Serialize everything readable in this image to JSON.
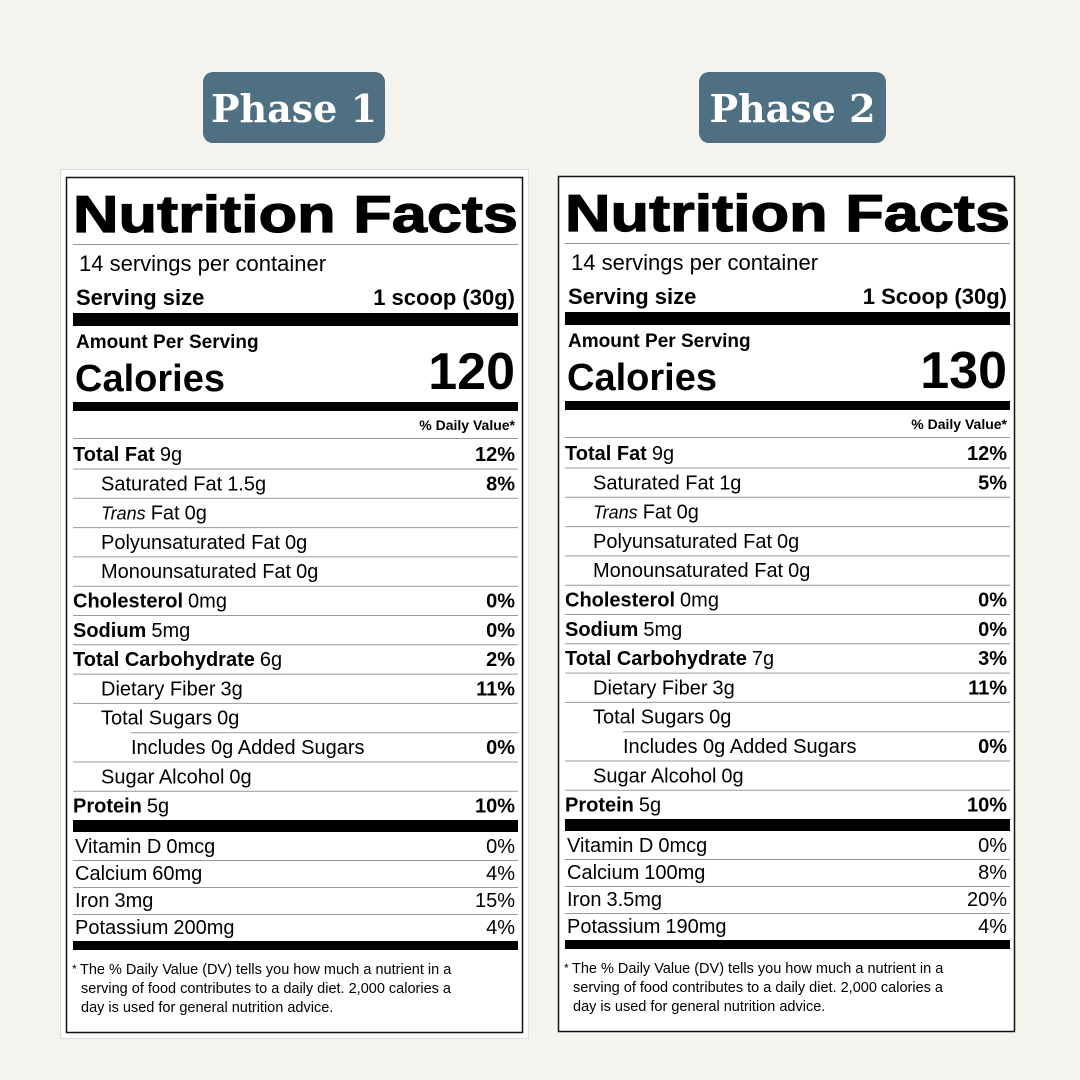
{
  "panels": [
    {
      "badge": "Phase 1",
      "label": {
        "title": "Nutrition Facts",
        "servings": "14 servings per container",
        "serving_size_label": "Serving size",
        "serving_size": "1 scoop (30g)",
        "amount_per_serving": "Amount Per Serving",
        "calories_label": "Calories",
        "calories": "120",
        "dv_header": "% Daily Value*",
        "nutrients": [
          {
            "name": "Total Fat",
            "amount": "9g",
            "dv": "12%",
            "bold": true,
            "indent": 0
          },
          {
            "name": "Saturated Fat",
            "amount": "1.5g",
            "dv": "8%",
            "bold": false,
            "indent": 1
          },
          {
            "italic_prefix": "Trans",
            "name": "Fat",
            "amount": "0g",
            "bold": false,
            "indent": 1
          },
          {
            "name": "Polyunsaturated Fat",
            "amount": "0g",
            "bold": false,
            "indent": 1
          },
          {
            "name": "Monounsaturated Fat",
            "amount": "0g",
            "bold": false,
            "indent": 1
          },
          {
            "name": "Cholesterol",
            "amount": "0mg",
            "dv": "0%",
            "bold": true,
            "indent": 0
          },
          {
            "name": "Sodium",
            "amount": "5mg",
            "dv": "0%",
            "bold": true,
            "indent": 0
          },
          {
            "name": "Total Carbohydrate",
            "amount": "6g",
            "dv": "2%",
            "bold": true,
            "indent": 0
          },
          {
            "name": "Dietary Fiber",
            "amount": "3g",
            "dv": "11%",
            "bold": false,
            "indent": 1
          },
          {
            "name": "Total Sugars",
            "amount": "0g",
            "bold": false,
            "indent": 1
          },
          {
            "name": "Includes 0g Added Sugars",
            "dv": "0%",
            "bold": false,
            "indent": 2
          },
          {
            "name": "Sugar Alcohol",
            "amount": "0g",
            "bold": false,
            "indent": 1
          },
          {
            "name": "Protein",
            "amount": "5g",
            "dv": "10%",
            "bold": true,
            "indent": 0
          }
        ],
        "vitamins": [
          {
            "name": "Vitamin D",
            "amount": "0mcg",
            "dv": "0%"
          },
          {
            "name": "Calcium",
            "amount": "60mg",
            "dv": "4%"
          },
          {
            "name": "Iron",
            "amount": "3mg",
            "dv": "15%"
          },
          {
            "name": "Potassium",
            "amount": "200mg",
            "dv": "4%"
          }
        ],
        "footnote_mark": "*",
        "footnote_lines": [
          "The % Daily Value (DV) tells you how much a nutrient in a",
          "serving of food contributes to a daily diet. 2,000 calories a",
          "day is used for general nutrition advice."
        ]
      }
    },
    {
      "badge": "Phase 2",
      "label": {
        "title": "Nutrition Facts",
        "servings": "14 servings per container",
        "serving_size_label": "Serving size",
        "serving_size": "1 Scoop (30g)",
        "amount_per_serving": "Amount Per Serving",
        "calories_label": "Calories",
        "calories": "130",
        "dv_header": "% Daily Value*",
        "nutrients": [
          {
            "name": "Total Fat",
            "amount": "9g",
            "dv": "12%",
            "bold": true,
            "indent": 0
          },
          {
            "name": "Saturated Fat",
            "amount": "1g",
            "dv": "5%",
            "bold": false,
            "indent": 1
          },
          {
            "italic_prefix": "Trans",
            "name": "Fat",
            "amount": "0g",
            "bold": false,
            "indent": 1
          },
          {
            "name": "Polyunsaturated Fat",
            "amount": "0g",
            "bold": false,
            "indent": 1
          },
          {
            "name": "Monounsaturated Fat",
            "amount": "0g",
            "bold": false,
            "indent": 1
          },
          {
            "name": "Cholesterol",
            "amount": "0mg",
            "dv": "0%",
            "bold": true,
            "indent": 0
          },
          {
            "name": "Sodium",
            "amount": "5mg",
            "dv": "0%",
            "bold": true,
            "indent": 0
          },
          {
            "name": "Total Carbohydrate",
            "amount": "7g",
            "dv": "3%",
            "bold": true,
            "indent": 0
          },
          {
            "name": "Dietary Fiber",
            "amount": "3g",
            "dv": "11%",
            "bold": false,
            "indent": 1
          },
          {
            "name": "Total Sugars",
            "amount": "0g",
            "bold": false,
            "indent": 1
          },
          {
            "name": "Includes 0g Added Sugars",
            "dv": "0%",
            "bold": false,
            "indent": 2
          },
          {
            "name": "Sugar Alcohol",
            "amount": "0g",
            "bold": false,
            "indent": 1
          },
          {
            "name": "Protein",
            "amount": "5g",
            "dv": "10%",
            "bold": true,
            "indent": 0
          }
        ],
        "vitamins": [
          {
            "name": "Vitamin D",
            "amount": "0mcg",
            "dv": "0%"
          },
          {
            "name": "Calcium",
            "amount": "100mg",
            "dv": "8%"
          },
          {
            "name": "Iron",
            "amount": "3.5mg",
            "dv": "20%"
          },
          {
            "name": "Potassium",
            "amount": "190mg",
            "dv": "4%"
          }
        ],
        "footnote_mark": "*",
        "footnote_lines": [
          "The % Daily Value (DV) tells you how much a nutrient in a",
          "serving of food contributes to a daily diet. 2,000 calories a",
          "day is used for general nutrition advice."
        ]
      }
    }
  ]
}
